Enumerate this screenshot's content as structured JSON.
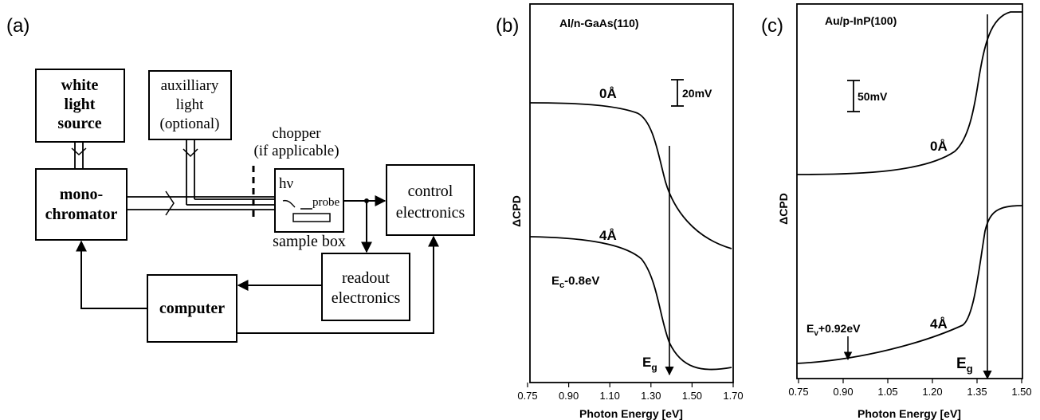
{
  "panels": {
    "a": {
      "label": "(a)",
      "blocks": {
        "white_light": [
          "white",
          "light",
          "source"
        ],
        "auxiliary": [
          "auxilliary",
          "light",
          "(optional)"
        ],
        "chopper": [
          "chopper",
          "(if applicable)"
        ],
        "monochromator": [
          "mono-",
          "chromator"
        ],
        "sample_hv": "hν",
        "sample_probe": "probe",
        "sample_box": "sample box",
        "control": [
          "control",
          "electronics"
        ],
        "readout": [
          "readout",
          "electronics"
        ],
        "computer": "computer"
      }
    },
    "b": {
      "label": "(b)",
      "title": "Al/n-GaAs(110)",
      "scale_bar": "20mV",
      "curve_labels": {
        "top": "0Å",
        "bottom": "4Å"
      },
      "annotation": {
        "main": "E",
        "sub": "c",
        "rest": "-0.8eV"
      },
      "eg": {
        "main": "E",
        "sub": "g"
      },
      "ylabel": "ΔCPD",
      "xlabel": "Photon Energy [eV]",
      "xticks": [
        "0.75",
        "0.90",
        "1.10",
        "1.30",
        "1.50",
        "1.70"
      ]
    },
    "c": {
      "label": "(c)",
      "title": "Au/p-InP(100)",
      "scale_bar": "50mV",
      "curve_labels": {
        "top": "0Å",
        "bottom": "4Å"
      },
      "annotation": {
        "main": "E",
        "sub": "v",
        "rest": "+0.92eV"
      },
      "eg": {
        "main": "E",
        "sub": "g"
      },
      "ylabel": "ΔCPD",
      "xlabel": "Photon Energy [eV]",
      "xticks": [
        "0.75",
        "0.90",
        "1.05",
        "1.20",
        "1.35",
        "1.50"
      ]
    }
  }
}
